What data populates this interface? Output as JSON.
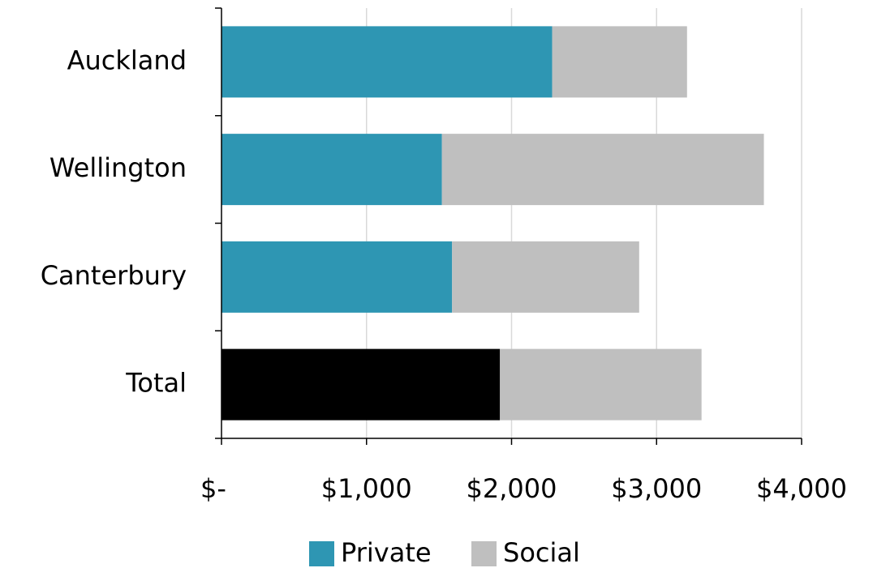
{
  "chart_data": {
    "type": "stacked-barh",
    "categories": [
      "Auckland",
      "Wellington",
      "Canterbury",
      "Total"
    ],
    "series": [
      {
        "name": "Private",
        "color": "#2e96b3",
        "colors": [
          "#2e96b3",
          "#2e96b3",
          "#2e96b3",
          "#000000"
        ],
        "values": [
          2280,
          1520,
          1590,
          1920
        ]
      },
      {
        "name": "Social",
        "color": "#bfbfbf",
        "values": [
          930,
          2220,
          1290,
          1390
        ]
      }
    ],
    "xlim": [
      0,
      4000
    ],
    "xticks": [
      {
        "value": 0,
        "label": "$-"
      },
      {
        "value": 1000,
        "label": "$1,000"
      },
      {
        "value": 2000,
        "label": "$2,000"
      },
      {
        "value": 3000,
        "label": "$3,000"
      },
      {
        "value": 4000,
        "label": "$4,000"
      }
    ],
    "grid": true,
    "legend": "bottom"
  }
}
